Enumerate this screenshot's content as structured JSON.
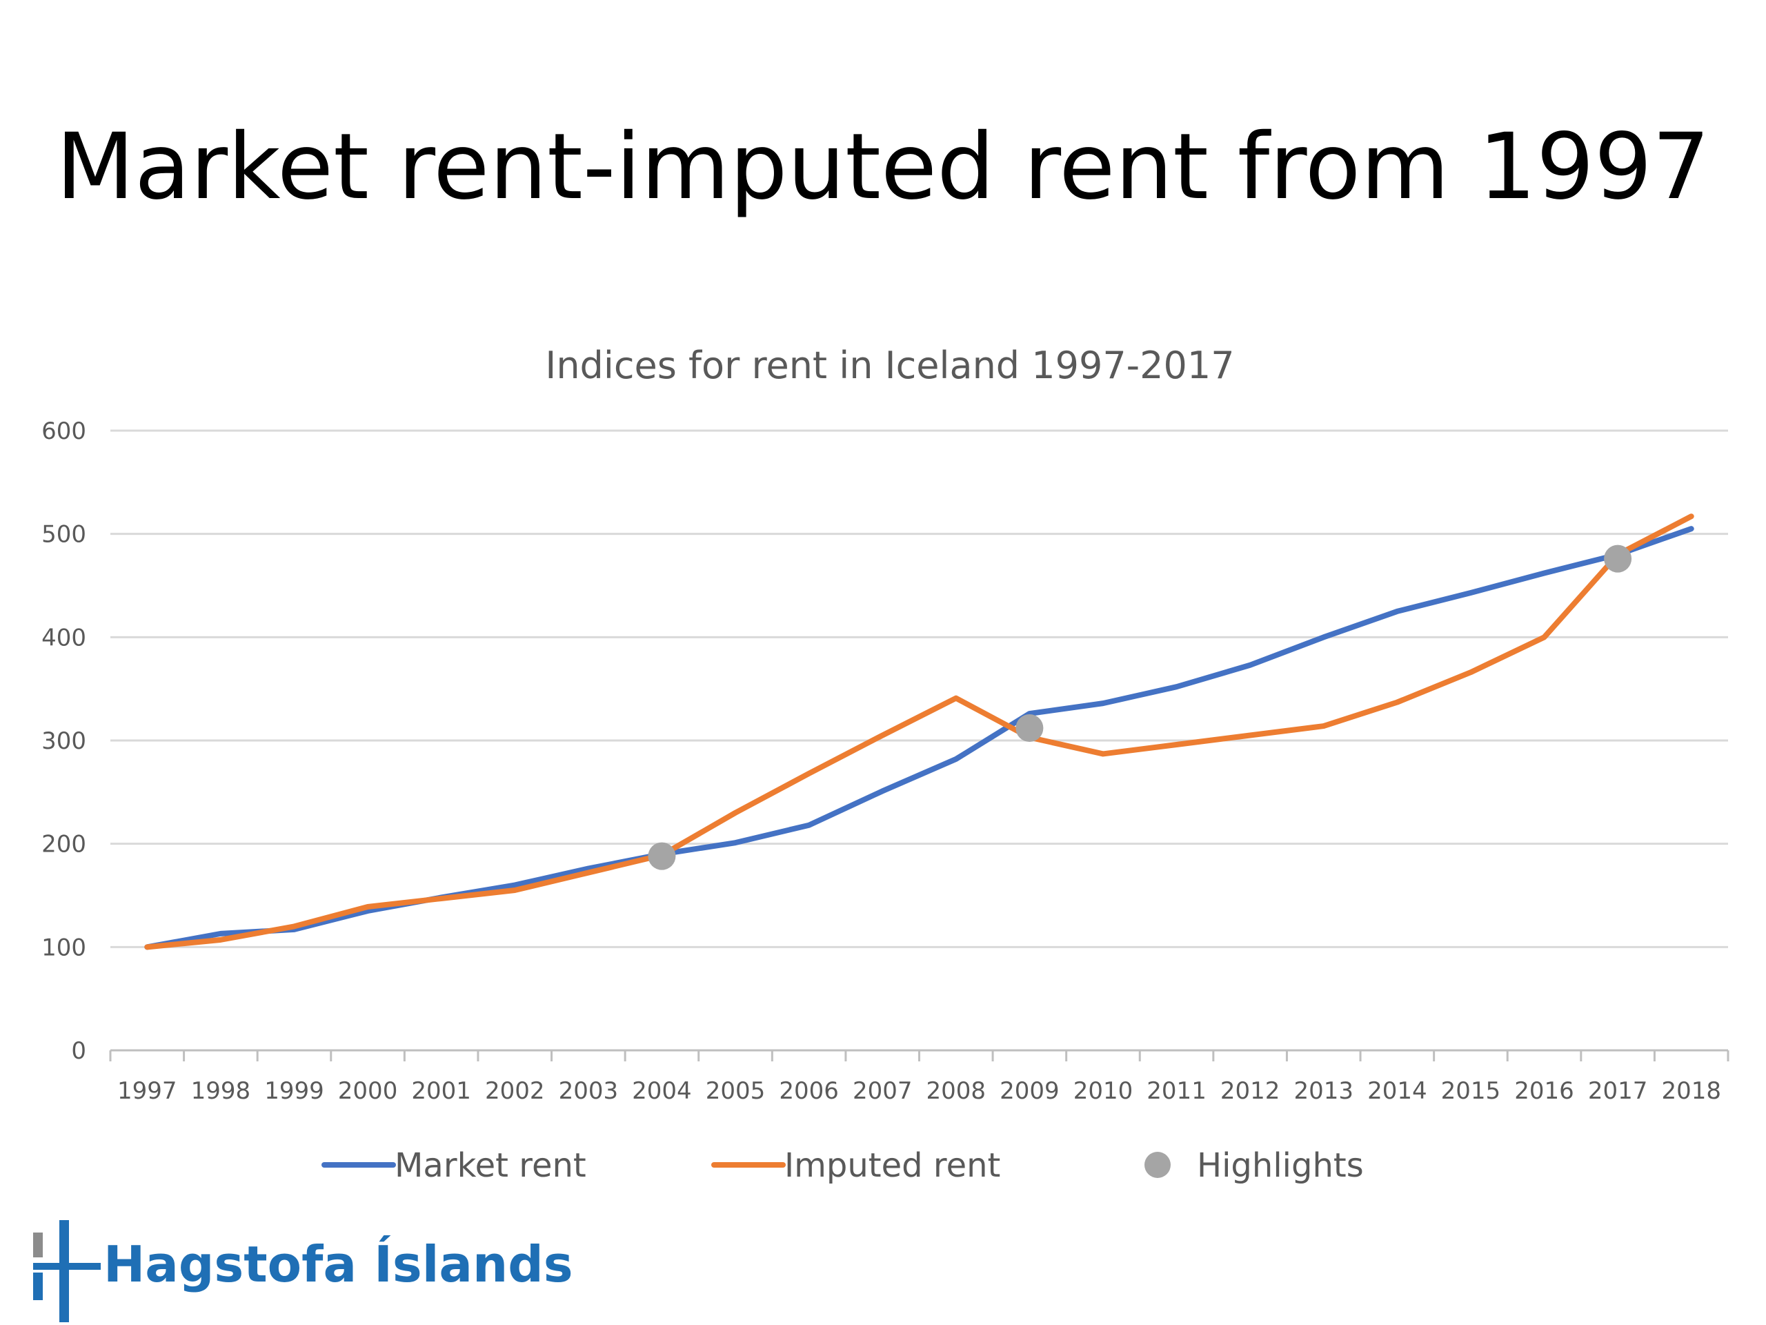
{
  "slide": {
    "title": "Market rent-imputed rent from 1997"
  },
  "logo": {
    "text": "Hagstofa Íslands",
    "colors": {
      "primary": "#1f6fb5",
      "secondary": "#8c8c8c"
    }
  },
  "chart_data": {
    "type": "line",
    "title": "Indices for rent in Iceland 1997-2017",
    "xlabel": "",
    "ylabel": "",
    "ylim": [
      0,
      600
    ],
    "yticks": [
      0,
      100,
      200,
      300,
      400,
      500,
      600
    ],
    "grid": true,
    "legend_position": "bottom",
    "categories": [
      "1997",
      "1998",
      "1999",
      "2000",
      "2001",
      "2002",
      "2003",
      "2004",
      "2005",
      "2006",
      "2007",
      "2008",
      "2009",
      "2010",
      "2011",
      "2012",
      "2013",
      "2014",
      "2015",
      "2016",
      "2017",
      "2018"
    ],
    "series": [
      {
        "name": "Market rent",
        "color": "#4472c4",
        "values": [
          100,
          113,
          117,
          135,
          148,
          160,
          176,
          190,
          201,
          218,
          251,
          282,
          326,
          336,
          352,
          373,
          400,
          425,
          443,
          462,
          480,
          505
        ]
      },
      {
        "name": "Imputed rent",
        "color": "#ed7d31",
        "values": [
          100,
          107,
          120,
          139,
          147,
          155,
          172,
          189,
          230,
          268,
          305,
          341,
          303,
          287,
          296,
          305,
          314,
          337,
          366,
          400,
          480,
          517
        ]
      }
    ],
    "highlights": {
      "name": "Highlights",
      "color": "#a5a5a5",
      "points": [
        {
          "x": "2004",
          "y": 188
        },
        {
          "x": "2009",
          "y": 312
        },
        {
          "x": "2017",
          "y": 476
        }
      ]
    }
  }
}
